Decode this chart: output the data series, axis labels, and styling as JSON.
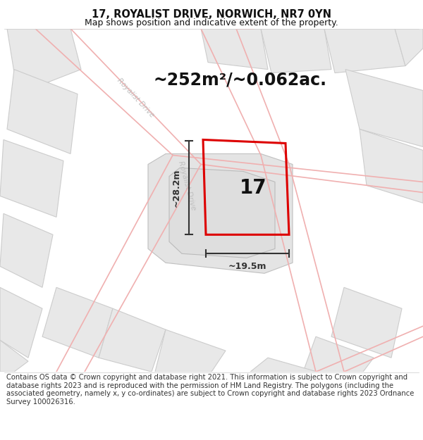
{
  "title": "17, ROYALIST DRIVE, NORWICH, NR7 0YN",
  "subtitle": "Map shows position and indicative extent of the property.",
  "area_text": "~252m²/~0.062ac.",
  "number_label": "17",
  "dim_width": "~19.5m",
  "dim_height": "~28.2m",
  "footer": "Contains OS data © Crown copyright and database right 2021. This information is subject to Crown copyright and database rights 2023 and is reproduced with the permission of HM Land Registry. The polygons (including the associated geometry, namely x, y co-ordinates) are subject to Crown copyright and database rights 2023 Ordnance Survey 100026316.",
  "map_bg": "#ffffff",
  "building_fill": "#e8e8e8",
  "building_edge": "#cccccc",
  "road_stroke": "#f0b0b0",
  "plot_stroke": "#dd0000",
  "dim_color": "#333333",
  "road_label_color": "#c0c0c0",
  "title_fontsize": 10.5,
  "subtitle_fontsize": 9,
  "area_fontsize": 17,
  "number_fontsize": 20,
  "footer_fontsize": 7.2
}
